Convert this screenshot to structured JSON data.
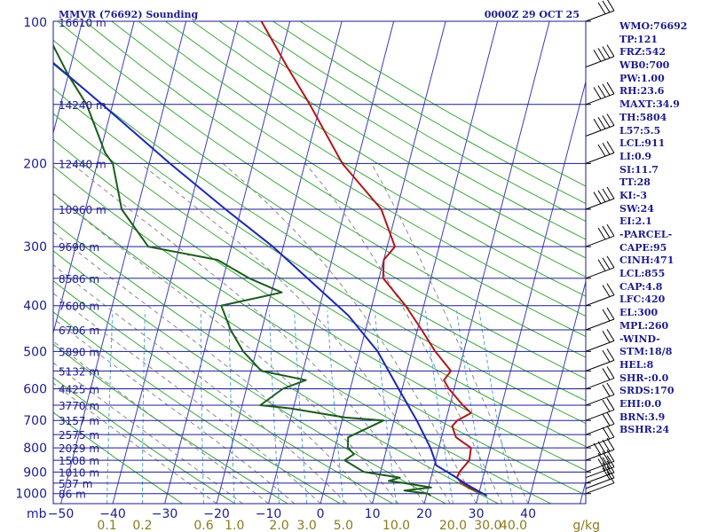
{
  "header": {
    "station": "MMVR (76692) Sounding",
    "time": "0000Z 29 OCT 25"
  },
  "axis": {
    "units_pressure": "mb",
    "units_mixing": "g/kg",
    "pressure_ticks": [
      {
        "label": "100",
        "p": 100
      },
      {
        "label": "200",
        "p": 200
      },
      {
        "label": "300",
        "p": 300
      },
      {
        "label": "400",
        "p": 400
      },
      {
        "label": "500",
        "p": 500
      },
      {
        "label": "600",
        "p": 600
      },
      {
        "label": "700",
        "p": 700
      },
      {
        "label": "800",
        "p": 800
      },
      {
        "label": "900",
        "p": 900
      },
      {
        "label": "1000",
        "p": 1000
      }
    ],
    "temp_ticks": [
      {
        "label": "−50",
        "t": -50
      },
      {
        "label": "−40",
        "t": -40
      },
      {
        "label": "−30",
        "t": -30
      },
      {
        "label": "−20",
        "t": -20
      },
      {
        "label": "−10",
        "t": -10
      },
      {
        "label": "0",
        "t": 0
      },
      {
        "label": "10",
        "t": 10
      },
      {
        "label": "20",
        "t": 20
      },
      {
        "label": "30",
        "t": 30
      },
      {
        "label": "40",
        "t": 40
      }
    ],
    "mixing_labels": [
      {
        "label": "0.1",
        "w": 0.1
      },
      {
        "label": "0.2",
        "w": 0.2
      },
      {
        "label": "0.6",
        "w": 0.6
      },
      {
        "label": "1.0",
        "w": 1.0
      },
      {
        "label": "2.0",
        "w": 2.0
      },
      {
        "label": "3.0",
        "w": 3.0
      },
      {
        "label": "5.0",
        "w": 5.0
      },
      {
        "label": "10.0",
        "w": 10.0
      },
      {
        "label": "20.0",
        "w": 20.0
      },
      {
        "label": "30.0",
        "w": 30.0
      },
      {
        "label": "40.0",
        "w": 40.0
      }
    ]
  },
  "height_levels": [
    {
      "p": 100,
      "label": "16610 m"
    },
    {
      "p": 150,
      "label": "14240 m"
    },
    {
      "p": 200,
      "label": "12440 m"
    },
    {
      "p": 250,
      "label": "10960 m"
    },
    {
      "p": 300,
      "label": "9690 m"
    },
    {
      "p": 350,
      "label": "8586 m"
    },
    {
      "p": 400,
      "label": "7600 m"
    },
    {
      "p": 450,
      "label": "6706 m"
    },
    {
      "p": 500,
      "label": "5890 m"
    },
    {
      "p": 550,
      "label": "5132 m"
    },
    {
      "p": 600,
      "label": "4425 m"
    },
    {
      "p": 650,
      "label": "3770 m"
    },
    {
      "p": 700,
      "label": "3157 m"
    },
    {
      "p": 750,
      "label": "2575 m"
    },
    {
      "p": 800,
      "label": "2029 m"
    },
    {
      "p": 850,
      "label": "1508 m"
    },
    {
      "p": 900,
      "label": "1010 m"
    },
    {
      "p": 950,
      "label": "537 m"
    },
    {
      "p": 1000,
      "label": "86 m"
    }
  ],
  "stats": [
    "WMO:76692",
    "TP:121",
    "FRZ:542",
    "WB0:700",
    "PW:1.00",
    "RH:23.6",
    "MAXT:34.9",
    "TH:5804",
    "L57:5.5",
    "LCL:911",
    "LI:0.9",
    "SI:11.7",
    "TT:28",
    "KI:-3",
    "SW:24",
    "EI:2.1",
    "-PARCEL-",
    "CAPE:95",
    "CINH:471",
    "LCL:855",
    "CAP:4.8",
    "LFC:420",
    "EL:300",
    "MPL:260",
    "-WIND-",
    "STM:18/8",
    "HEL:8",
    "SHR-:0.0",
    "SRDS:170",
    "EHI:0.0",
    "BRN:3.9",
    "BSHR:24"
  ],
  "colors": {
    "isobar": "#1c1c8c",
    "isotherm": "#3c3cc0",
    "dry_adiabat": "#3ca83c",
    "moist_adiabat": "#8a8a8a",
    "mixing_ratio": "#4aa8d8",
    "temperature": "#b01818",
    "dewpoint": "#1c5c1c",
    "parcel": "#1c28b0",
    "wind": "#000000"
  },
  "chart_data": {
    "type": "line",
    "title": "MMVR (76692) Sounding",
    "subtitle": "0000Z 29 OCT 25",
    "xlabel": "",
    "ylabel": "",
    "xlim": [
      -50,
      50
    ],
    "ylim": [
      1000,
      100
    ],
    "series": [
      {
        "key": "temperature",
        "points": [
          [
            1010,
            31.6
          ],
          [
            1000,
            30.8
          ],
          [
            975,
            28.2
          ],
          [
            950,
            26.2
          ],
          [
            925,
            25.0
          ],
          [
            900,
            25.2
          ],
          [
            850,
            26.5
          ],
          [
            800,
            26.2
          ],
          [
            780,
            24.5
          ],
          [
            760,
            22.8
          ],
          [
            720,
            21.5
          ],
          [
            700,
            22.2
          ],
          [
            675,
            24.5
          ],
          [
            650,
            22.5
          ],
          [
            600,
            19.0
          ],
          [
            575,
            17.6
          ],
          [
            550,
            18.5
          ],
          [
            500,
            14.5
          ],
          [
            450,
            10.8
          ],
          [
            400,
            6.5
          ],
          [
            350,
            0.8
          ],
          [
            320,
            0.0
          ],
          [
            300,
            1.5
          ],
          [
            250,
            -3.0
          ],
          [
            200,
            -12.8
          ],
          [
            150,
            -22.0
          ],
          [
            125,
            -28.2
          ],
          [
            100,
            -35.5
          ]
        ]
      },
      {
        "key": "dewpoint",
        "points": [
          [
            1010,
            20.8
          ],
          [
            1000,
            20.2
          ],
          [
            985,
            15.5
          ],
          [
            970,
            20.5
          ],
          [
            950,
            15.0
          ],
          [
            940,
            12.0
          ],
          [
            925,
            14.0
          ],
          [
            900,
            6.8
          ],
          [
            850,
            2.5
          ],
          [
            825,
            4.0
          ],
          [
            800,
            2.5
          ],
          [
            760,
            2.0
          ],
          [
            700,
            8.0
          ],
          [
            690,
            0.5
          ],
          [
            660,
            -10.5
          ],
          [
            650,
            -16.5
          ],
          [
            600,
            -13.0
          ],
          [
            575,
            -9.0
          ],
          [
            550,
            -18.0
          ],
          [
            500,
            -22.5
          ],
          [
            450,
            -26.0
          ],
          [
            400,
            -29.0
          ],
          [
            375,
            -18.0
          ],
          [
            350,
            -25.0
          ],
          [
            320,
            -32.0
          ],
          [
            300,
            -46.0
          ],
          [
            250,
            -53.0
          ],
          [
            200,
            -57.0
          ],
          [
            190,
            -59.0
          ],
          [
            150,
            -65.0
          ],
          [
            130,
            -70.0
          ],
          [
            100,
            -78.0
          ]
        ]
      },
      {
        "key": "parcel",
        "points": [
          [
            1010,
            31.6
          ],
          [
            1000,
            30.8
          ],
          [
            960,
            27.5
          ],
          [
            920,
            24.5
          ],
          [
            890,
            22.0
          ],
          [
            870,
            20.3
          ],
          [
            855,
            20.0
          ],
          [
            800,
            18.4
          ],
          [
            700,
            14.4
          ],
          [
            600,
            9.3
          ],
          [
            500,
            3.4
          ],
          [
            420,
            -4.0
          ],
          [
            300,
            -22.0
          ],
          [
            250,
            -33.0
          ],
          [
            200,
            -46.0
          ],
          [
            150,
            -62.0
          ],
          [
            100,
            -85.0
          ]
        ]
      }
    ]
  }
}
